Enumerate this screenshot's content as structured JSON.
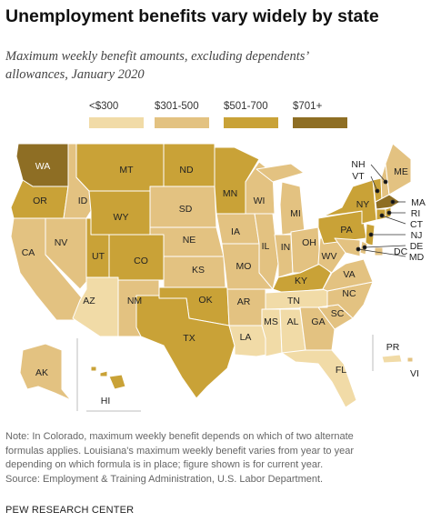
{
  "title": "Unemployment benefits vary widely by state",
  "subtitle_line1": "Maximum weekly benefit amounts, excluding dependents’",
  "subtitle_line2": "allowances, January 2020",
  "legend": [
    {
      "label": "<$300",
      "color": "#F1DBA7"
    },
    {
      "label": "$301-500",
      "color": "#E3C281"
    },
    {
      "label": "$501-700",
      "color": "#C9A237"
    },
    {
      "label": "$701+",
      "color": "#8E6E24"
    }
  ],
  "chart_data": {
    "type": "choropleth",
    "categories": [
      "<$300",
      "$301-500",
      "$501-700",
      "$701+"
    ],
    "states": [
      {
        "abbr": "WA",
        "cat": 3
      },
      {
        "abbr": "OR",
        "cat": 2
      },
      {
        "abbr": "CA",
        "cat": 1
      },
      {
        "abbr": "ID",
        "cat": 1
      },
      {
        "abbr": "NV",
        "cat": 1
      },
      {
        "abbr": "MT",
        "cat": 2
      },
      {
        "abbr": "WY",
        "cat": 2
      },
      {
        "abbr": "UT",
        "cat": 2
      },
      {
        "abbr": "CO",
        "cat": 2
      },
      {
        "abbr": "AZ",
        "cat": 0
      },
      {
        "abbr": "NM",
        "cat": 1
      },
      {
        "abbr": "ND",
        "cat": 2
      },
      {
        "abbr": "SD",
        "cat": 1
      },
      {
        "abbr": "NE",
        "cat": 1
      },
      {
        "abbr": "KS",
        "cat": 1
      },
      {
        "abbr": "OK",
        "cat": 2
      },
      {
        "abbr": "TX",
        "cat": 2
      },
      {
        "abbr": "MN",
        "cat": 2
      },
      {
        "abbr": "IA",
        "cat": 1
      },
      {
        "abbr": "MO",
        "cat": 1
      },
      {
        "abbr": "AR",
        "cat": 1
      },
      {
        "abbr": "LA",
        "cat": 0
      },
      {
        "abbr": "WI",
        "cat": 1
      },
      {
        "abbr": "IL",
        "cat": 1
      },
      {
        "abbr": "MI",
        "cat": 1
      },
      {
        "abbr": "IN",
        "cat": 1
      },
      {
        "abbr": "OH",
        "cat": 1
      },
      {
        "abbr": "KY",
        "cat": 2
      },
      {
        "abbr": "TN",
        "cat": 0
      },
      {
        "abbr": "MS",
        "cat": 0
      },
      {
        "abbr": "AL",
        "cat": 0
      },
      {
        "abbr": "GA",
        "cat": 1
      },
      {
        "abbr": "FL",
        "cat": 0
      },
      {
        "abbr": "SC",
        "cat": 1
      },
      {
        "abbr": "NC",
        "cat": 1
      },
      {
        "abbr": "VA",
        "cat": 1
      },
      {
        "abbr": "WV",
        "cat": 1
      },
      {
        "abbr": "PA",
        "cat": 2
      },
      {
        "abbr": "NY",
        "cat": 2
      },
      {
        "abbr": "VT",
        "cat": 2
      },
      {
        "abbr": "NH",
        "cat": 1
      },
      {
        "abbr": "ME",
        "cat": 1
      },
      {
        "abbr": "MA",
        "cat": 3
      },
      {
        "abbr": "RI",
        "cat": 2
      },
      {
        "abbr": "CT",
        "cat": 2
      },
      {
        "abbr": "NJ",
        "cat": 2
      },
      {
        "abbr": "DE",
        "cat": 1
      },
      {
        "abbr": "MD",
        "cat": 1
      },
      {
        "abbr": "DC",
        "cat": 1
      },
      {
        "abbr": "AK",
        "cat": 1
      },
      {
        "abbr": "HI",
        "cat": 2
      },
      {
        "abbr": "PR",
        "cat": 0
      },
      {
        "abbr": "VI",
        "cat": 1
      }
    ]
  },
  "notes": [
    "Note: In Colorado, maximum weekly benefit depends on which of two alternate",
    "formulas applies. Louisiana's maximum weekly benefit varies from year to year",
    "depending on which formula is in place; figure shown is for current year.",
    "Source: Employment & Training Administration, U.S. Labor Department."
  ],
  "credit": "PEW RESEARCH CENTER"
}
